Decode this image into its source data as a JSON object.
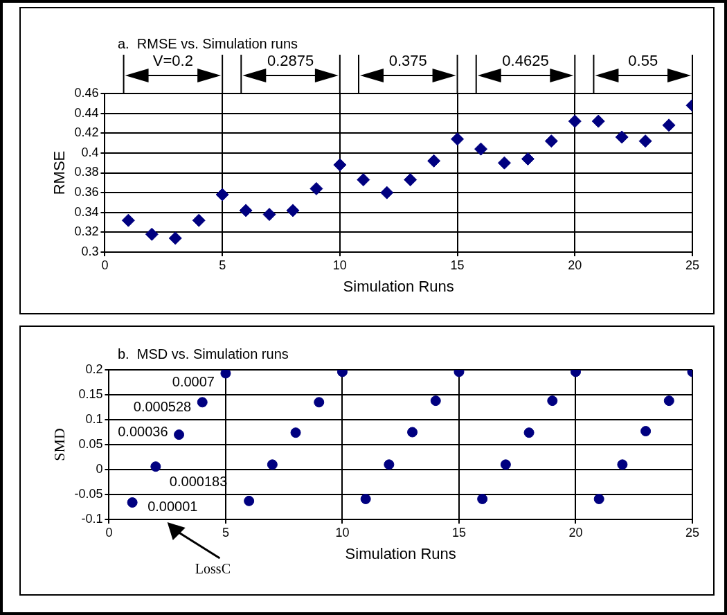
{
  "chart_data": [
    {
      "type": "scatter",
      "title": "a.  RMSE vs. Simulation runs",
      "xlabel": "Simulation Runs",
      "ylabel": "RMSE",
      "x": [
        1,
        2,
        3,
        4,
        5,
        6,
        7,
        8,
        9,
        10,
        11,
        12,
        13,
        14,
        15,
        16,
        17,
        18,
        19,
        20,
        21,
        22,
        23,
        24,
        25
      ],
      "values": [
        0.332,
        0.318,
        0.314,
        0.332,
        0.358,
        0.342,
        0.338,
        0.342,
        0.364,
        0.388,
        0.373,
        0.36,
        0.373,
        0.392,
        0.414,
        0.404,
        0.39,
        0.394,
        0.412,
        0.432,
        0.432,
        0.416,
        0.412,
        0.428,
        0.448
      ],
      "color": "#000080",
      "marker": "diamond",
      "xlim": [
        0,
        25
      ],
      "xticks": [
        0,
        5,
        10,
        15,
        20,
        25
      ],
      "ylim": [
        0.3,
        0.46
      ],
      "yticks": [
        0.3,
        0.32,
        0.34,
        0.36,
        0.38,
        0.4,
        0.42,
        0.44,
        0.46
      ],
      "grid": true,
      "legend": false,
      "annotations": [
        "V=0.2",
        "0.2875",
        "0.375",
        "0.4625",
        "0.55"
      ]
    },
    {
      "type": "scatter",
      "title": "b.  MSD vs. Simulation runs",
      "xlabel": "Simulation Runs",
      "ylabel": "SMD",
      "x": [
        1,
        2,
        3,
        4,
        5,
        6,
        7,
        8,
        9,
        10,
        11,
        12,
        13,
        14,
        15,
        16,
        17,
        18,
        19,
        20,
        21,
        22,
        23,
        24,
        25
      ],
      "values": [
        -0.066,
        0.006,
        0.07,
        0.135,
        0.193,
        -0.063,
        0.01,
        0.074,
        0.135,
        0.196,
        -0.059,
        0.01,
        0.075,
        0.138,
        0.196,
        -0.059,
        0.01,
        0.074,
        0.138,
        0.196,
        -0.059,
        0.01,
        0.077,
        0.138,
        0.196
      ],
      "color": "#000080",
      "marker": "circle",
      "xlim": [
        0,
        25
      ],
      "xticks": [
        0,
        5,
        10,
        15,
        20,
        25
      ],
      "ylim": [
        -0.1,
        0.2
      ],
      "yticks": [
        -0.1,
        -0.05,
        0,
        0.05,
        0.1,
        0.15,
        0.2
      ],
      "grid": true,
      "legend": false,
      "annotations": [
        "0.0007",
        "0.000528",
        "0.00036",
        "0.000183",
        "0.00001",
        "LossC"
      ]
    }
  ]
}
